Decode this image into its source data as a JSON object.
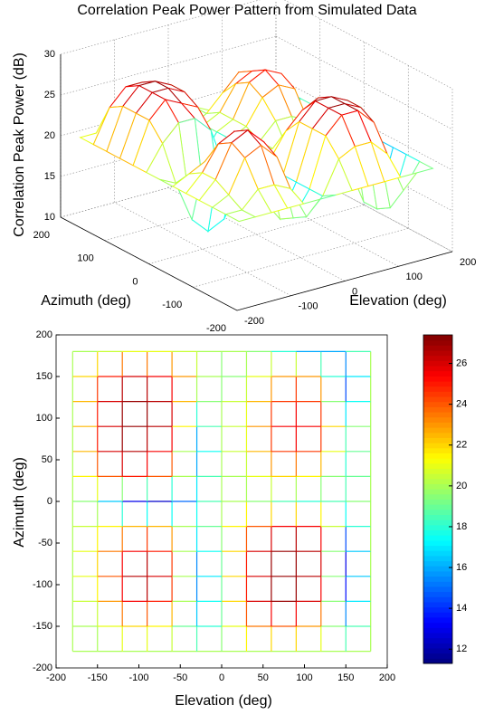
{
  "chart_data": [
    {
      "type": "mesh3d",
      "title": "Correlation Peak Power Pattern from Simulated Data",
      "xlabel": "Elevation (deg)",
      "ylabel": "Azimuth (deg)",
      "zlabel": "Correlation Peak Power (dB)",
      "x": [
        -180,
        -150,
        -120,
        -90,
        -60,
        -30,
        0,
        30,
        60,
        90,
        120,
        150,
        180
      ],
      "y": [
        -180,
        -150,
        -120,
        -90,
        -60,
        -30,
        0,
        30,
        60,
        90,
        120,
        150,
        180
      ],
      "z": [
        [
          20,
          20,
          20,
          20,
          20,
          20,
          20,
          20,
          20,
          20,
          20,
          20,
          20
        ],
        [
          20,
          20,
          22,
          22,
          21,
          17,
          19,
          23,
          24,
          24,
          22,
          17,
          20
        ],
        [
          20,
          21,
          25,
          26,
          24,
          16,
          19,
          25,
          27,
          27,
          25,
          14,
          20
        ],
        [
          20,
          22,
          26,
          27,
          25,
          15,
          19,
          25,
          27,
          27,
          26,
          13,
          20
        ],
        [
          20,
          22,
          25,
          26,
          24,
          16,
          19,
          25,
          27,
          27,
          26,
          13,
          20
        ],
        [
          20,
          21,
          22,
          23,
          22,
          18,
          20,
          23,
          25,
          26,
          25,
          16,
          20
        ],
        [
          20,
          19,
          14,
          12,
          13,
          17,
          20,
          20,
          19,
          18,
          18,
          19,
          20
        ],
        [
          20,
          23,
          25,
          25,
          23,
          17,
          20,
          20,
          22,
          22,
          21,
          18,
          20
        ],
        [
          20,
          25,
          27,
          26,
          25,
          15,
          20,
          21,
          24,
          25,
          24,
          18,
          20
        ],
        [
          20,
          25,
          27,
          27,
          26,
          17,
          20,
          21,
          25,
          26,
          25,
          19,
          20
        ],
        [
          20,
          25,
          27,
          27,
          26,
          19,
          20,
          21,
          24,
          25,
          24,
          15,
          20
        ],
        [
          20,
          24,
          26,
          26,
          25,
          21,
          19,
          20,
          22,
          24,
          22,
          14,
          20
        ],
        [
          20,
          20,
          21,
          21,
          21,
          20,
          20,
          20,
          19,
          17,
          15,
          17,
          20
        ]
      ],
      "xlim": [
        -200,
        200
      ],
      "ylim": [
        -200,
        200
      ],
      "zlim": [
        10,
        30
      ],
      "xticks": [
        -200,
        -100,
        0,
        100,
        200
      ],
      "yticks": [
        -200,
        -100,
        0,
        100,
        200
      ],
      "zticks": [
        10,
        15,
        20,
        25,
        30
      ],
      "grid": true,
      "colormap": "jet",
      "clim": [
        11.3,
        27.4
      ]
    },
    {
      "type": "mesh-top",
      "xlabel": "Elevation (deg)",
      "ylabel": "Azimuth (deg)",
      "xlim": [
        -200,
        200
      ],
      "ylim": [
        -200,
        200
      ],
      "xticks": [
        -200,
        -150,
        -100,
        -50,
        0,
        50,
        100,
        150,
        200
      ],
      "yticks": [
        -200,
        -150,
        -100,
        -50,
        0,
        50,
        100,
        150,
        200
      ],
      "colormap": "jet",
      "clim": [
        11.3,
        27.4
      ],
      "colorbar_ticks": [
        12,
        14,
        16,
        18,
        20,
        22,
        24,
        26
      ]
    }
  ]
}
